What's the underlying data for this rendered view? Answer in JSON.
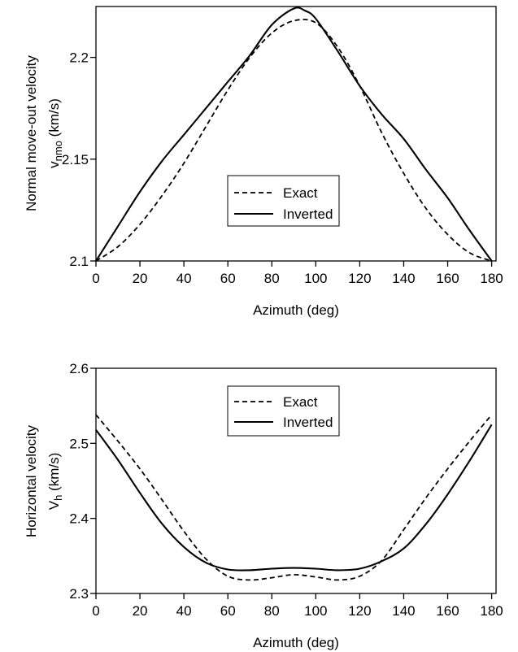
{
  "chart_data": [
    {
      "type": "line",
      "xlabel": "Azimuth  (deg)",
      "ylabel": "Normal move-out velocity",
      "ylabel2_prefix": "v",
      "ylabel2_sub": "nmo",
      "ylabel2_suffix": " (km/s)",
      "xlim": [
        0,
        182
      ],
      "ylim": [
        2.1,
        2.225
      ],
      "x_ticks": [
        0,
        20,
        40,
        60,
        80,
        100,
        120,
        140,
        160,
        180
      ],
      "x_tick_labels": [
        "0",
        "20",
        "40",
        "60",
        "80",
        "100",
        "120",
        "140",
        "160",
        "180"
      ],
      "y_ticks": [
        2.1,
        2.15,
        2.2
      ],
      "y_tick_labels": [
        "2.1",
        "2.15",
        "2.2"
      ],
      "grid": false,
      "legend_position": "center",
      "series": [
        {
          "name": "Exact",
          "style": "dashed",
          "x": [
            0,
            10,
            20,
            30,
            40,
            50,
            60,
            70,
            80,
            90,
            100,
            110,
            120,
            130,
            140,
            150,
            160,
            170,
            180
          ],
          "y": [
            2.1,
            2.107,
            2.118,
            2.132,
            2.148,
            2.166,
            2.184,
            2.2,
            2.212,
            2.218,
            2.217,
            2.205,
            2.186,
            2.163,
            2.143,
            2.126,
            2.113,
            2.104,
            2.1
          ]
        },
        {
          "name": "Inverted",
          "style": "solid",
          "x": [
            0,
            10,
            20,
            30,
            40,
            50,
            60,
            70,
            80,
            90,
            95,
            100,
            110,
            120,
            130,
            140,
            150,
            160,
            170,
            180
          ],
          "y": [
            2.1,
            2.117,
            2.134,
            2.149,
            2.162,
            2.175,
            2.188,
            2.201,
            2.216,
            2.224,
            2.223,
            2.219,
            2.203,
            2.186,
            2.172,
            2.16,
            2.145,
            2.131,
            2.115,
            2.1
          ]
        }
      ]
    },
    {
      "type": "line",
      "xlabel": "Azimuth  (deg)",
      "ylabel": "Horizontal velocity",
      "ylabel2_prefix": "V",
      "ylabel2_sub": "h",
      "ylabel2_suffix": " (km/s)",
      "xlim": [
        0,
        182
      ],
      "ylim": [
        2.3,
        2.6
      ],
      "x_ticks": [
        0,
        20,
        40,
        60,
        80,
        100,
        120,
        140,
        160,
        180
      ],
      "x_tick_labels": [
        "0",
        "20",
        "40",
        "60",
        "80",
        "100",
        "120",
        "140",
        "160",
        "180"
      ],
      "y_ticks": [
        2.3,
        2.4,
        2.5,
        2.6
      ],
      "y_tick_labels": [
        "2.3",
        "2.4",
        "2.5",
        "2.6"
      ],
      "grid": false,
      "legend_position": "top-center",
      "series": [
        {
          "name": "Exact",
          "style": "dashed",
          "x": [
            0,
            10,
            20,
            30,
            40,
            50,
            60,
            70,
            80,
            90,
            100,
            110,
            120,
            130,
            140,
            150,
            160,
            170,
            180
          ],
          "y": [
            2.538,
            2.503,
            2.466,
            2.425,
            2.383,
            2.346,
            2.323,
            2.318,
            2.321,
            2.325,
            2.322,
            2.318,
            2.323,
            2.344,
            2.385,
            2.427,
            2.466,
            2.503,
            2.538
          ]
        },
        {
          "name": "Inverted",
          "style": "solid",
          "x": [
            0,
            10,
            20,
            30,
            40,
            50,
            60,
            70,
            80,
            90,
            100,
            110,
            120,
            130,
            140,
            150,
            160,
            170,
            180
          ],
          "y": [
            2.518,
            2.478,
            2.434,
            2.393,
            2.362,
            2.341,
            2.332,
            2.331,
            2.333,
            2.334,
            2.333,
            2.331,
            2.333,
            2.343,
            2.36,
            2.392,
            2.432,
            2.477,
            2.525
          ]
        }
      ]
    }
  ]
}
